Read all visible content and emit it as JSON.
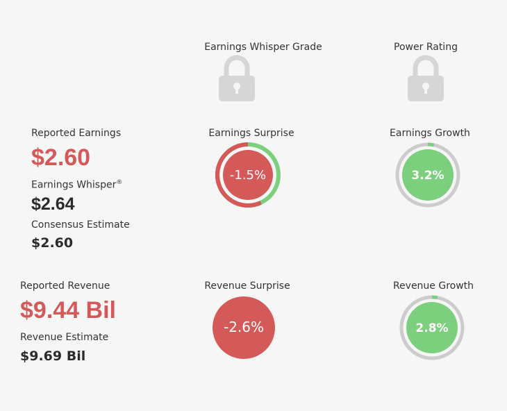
{
  "grade": {
    "title": "Earnings Whisper Grade",
    "icon": "lock-icon"
  },
  "power": {
    "title": "Power Rating",
    "icon": "lock-icon"
  },
  "earnings": {
    "reported_label": "Reported Earnings",
    "reported_value": "$2.60",
    "whisper_label": "Earnings Whisper",
    "whisper_mark": "®",
    "whisper_value": "$2.64",
    "consensus_label": "Consensus Estimate",
    "consensus_value": "$2.60"
  },
  "earnings_surprise": {
    "label": "Earnings Surprise",
    "value": "-1.5%",
    "value_num": -1.5
  },
  "earnings_growth": {
    "label": "Earnings Growth",
    "value": "3.2%",
    "value_num": 3.2
  },
  "revenue": {
    "reported_label": "Reported Revenue",
    "reported_value": "$9.44 Bil",
    "estimate_label": "Revenue Estimate",
    "estimate_value": "$9.69 Bil"
  },
  "revenue_surprise": {
    "label": "Revenue Surprise",
    "value": "-2.6%",
    "value_num": -2.6
  },
  "revenue_growth": {
    "label": "Revenue Growth",
    "value": "2.8%",
    "value_num": 2.8
  },
  "colors": {
    "red": "#d45a5a",
    "green": "#7ccf7c",
    "gray": "#cccccc",
    "lock": "#d6d6d6"
  }
}
